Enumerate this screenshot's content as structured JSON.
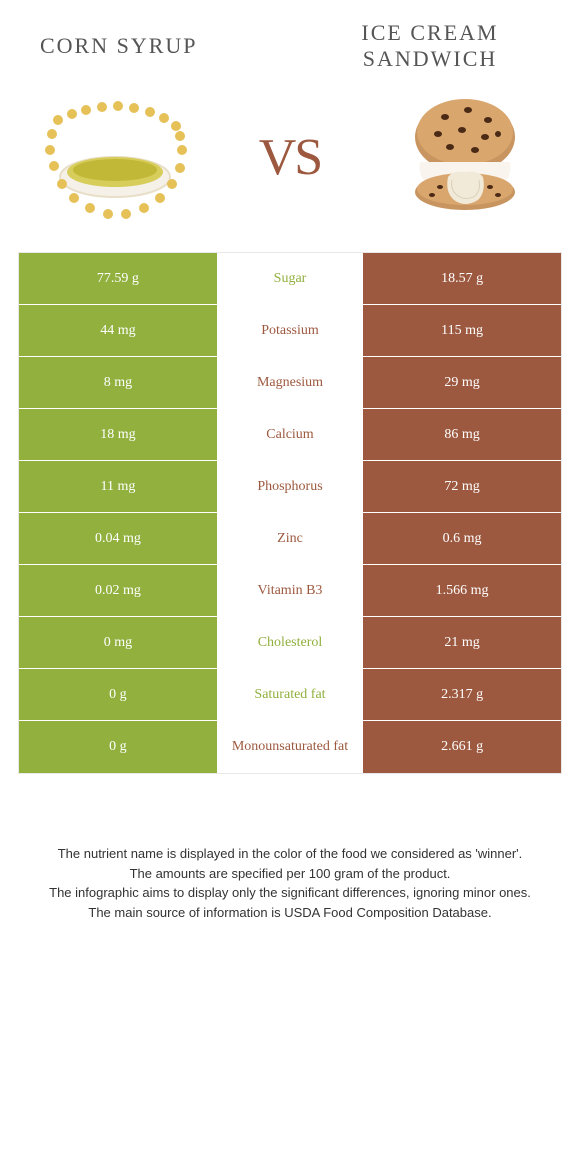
{
  "titles": {
    "left": "CORN SYRUP",
    "right": "ICE CREAM SANDWICH",
    "vs": "VS"
  },
  "colors": {
    "left_food": "#91b03e",
    "right_food": "#9c593f",
    "background": "#ffffff",
    "title_text": "#555555"
  },
  "rows": [
    {
      "label": "Sugar",
      "left": "77.59 g",
      "right": "18.57 g",
      "winner": "left"
    },
    {
      "label": "Potassium",
      "left": "44 mg",
      "right": "115 mg",
      "winner": "right"
    },
    {
      "label": "Magnesium",
      "left": "8 mg",
      "right": "29 mg",
      "winner": "right"
    },
    {
      "label": "Calcium",
      "left": "18 mg",
      "right": "86 mg",
      "winner": "right"
    },
    {
      "label": "Phosphorus",
      "left": "11 mg",
      "right": "72 mg",
      "winner": "right"
    },
    {
      "label": "Zinc",
      "left": "0.04 mg",
      "right": "0.6 mg",
      "winner": "right"
    },
    {
      "label": "Vitamin B3",
      "left": "0.02 mg",
      "right": "1.566 mg",
      "winner": "right"
    },
    {
      "label": "Cholesterol",
      "left": "0 mg",
      "right": "21 mg",
      "winner": "left"
    },
    {
      "label": "Saturated fat",
      "left": "0 g",
      "right": "2.317 g",
      "winner": "left"
    },
    {
      "label": "Monounsaturated fat",
      "left": "0 g",
      "right": "2.661 g",
      "winner": "right"
    }
  ],
  "footer": [
    "The nutrient name is displayed in the color of the food we considered as 'winner'.",
    "The amounts are specified per 100 gram of the product.",
    "The infographic aims to display only the significant differences, ignoring minor ones.",
    "The main source of information is USDA Food Composition Database."
  ]
}
